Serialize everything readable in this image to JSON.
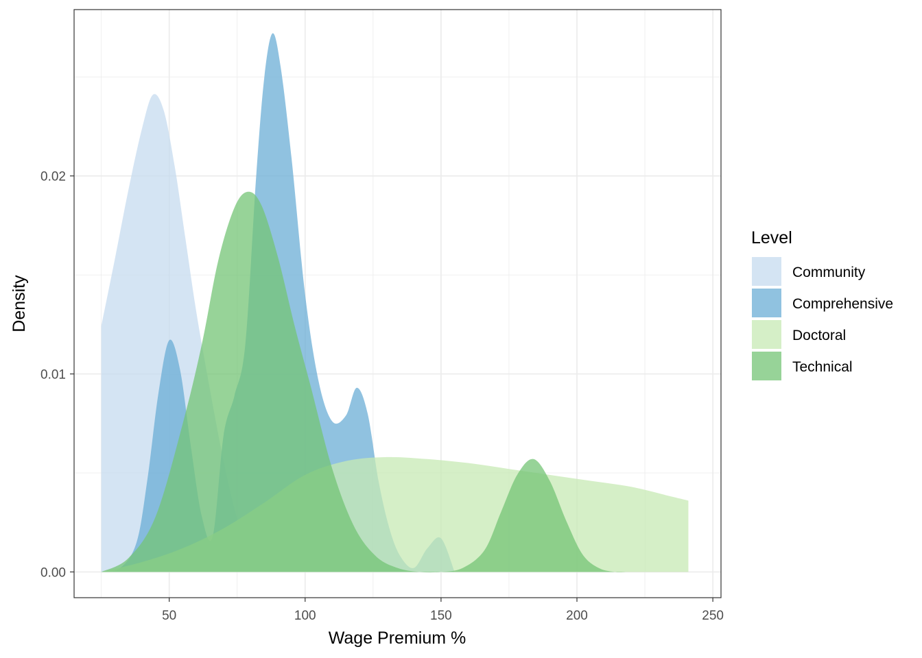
{
  "chart_data": {
    "type": "area",
    "subtype": "density",
    "title": "",
    "xlabel": "Wage Premium %",
    "ylabel": "Density",
    "xlim": [
      15,
      253
    ],
    "ylim": [
      -0.0013,
      0.0284
    ],
    "x_ticks": [
      50,
      100,
      150,
      200,
      250
    ],
    "x_tick_labels": [
      "50",
      "100",
      "150",
      "200",
      "250"
    ],
    "y_ticks": [
      0.0,
      0.01,
      0.02
    ],
    "y_tick_labels": [
      "0.00",
      "0.01",
      "0.02"
    ],
    "grid": true,
    "legend": {
      "title": "Level",
      "position": "right"
    },
    "series": [
      {
        "name": "Community",
        "color": "#c6dbef",
        "x": [
          25,
          30,
          35,
          40,
          44,
          48,
          52,
          56,
          60,
          65,
          70,
          75,
          80,
          85,
          90
        ],
        "y": [
          0.0124,
          0.0158,
          0.0193,
          0.0224,
          0.0241,
          0.0233,
          0.0205,
          0.0168,
          0.0131,
          0.0092,
          0.0056,
          0.0027,
          0.001,
          0.0003,
          0.0
        ]
      },
      {
        "name": "Comprehensive",
        "color": "#6baed6",
        "x": [
          25,
          32,
          38,
          42,
          46,
          50,
          54,
          58,
          62,
          66,
          70,
          74,
          78,
          82,
          85,
          88,
          91,
          95,
          100,
          105,
          110,
          115,
          119,
          123,
          127,
          131,
          135,
          140,
          145,
          150,
          155
        ],
        "y": [
          0.0,
          0.0002,
          0.0015,
          0.0047,
          0.009,
          0.0117,
          0.0102,
          0.0063,
          0.0028,
          0.0018,
          0.0069,
          0.0089,
          0.0115,
          0.02,
          0.025,
          0.0272,
          0.0255,
          0.0209,
          0.014,
          0.0096,
          0.0076,
          0.0079,
          0.0093,
          0.008,
          0.0046,
          0.0022,
          0.0008,
          0.0002,
          0.0012,
          0.0017,
          0.0
        ]
      },
      {
        "name": "Doctoral",
        "color": "#c7e9b4",
        "x": [
          25,
          40,
          55,
          70,
          85,
          100,
          115,
          130,
          145,
          160,
          175,
          190,
          205,
          220,
          235,
          241
        ],
        "y": [
          0.0,
          0.0005,
          0.0012,
          0.0022,
          0.0035,
          0.0049,
          0.0056,
          0.0058,
          0.0057,
          0.0055,
          0.0052,
          0.0049,
          0.0046,
          0.0043,
          0.0038,
          0.0036
        ]
      },
      {
        "name": "Technical",
        "color": "#74c476",
        "x": [
          25,
          35,
          45,
          55,
          62,
          68,
          74,
          79,
          84,
          90,
          96,
          102,
          110,
          118,
          126,
          134,
          142,
          150,
          158,
          166,
          172,
          178,
          184,
          190,
          196,
          202,
          208,
          214,
          218
        ],
        "y": [
          0.0,
          0.0007,
          0.0028,
          0.0075,
          0.0115,
          0.0157,
          0.0184,
          0.0192,
          0.0185,
          0.0159,
          0.0125,
          0.0094,
          0.0052,
          0.0023,
          0.0008,
          0.0002,
          0.0,
          0.0,
          0.0002,
          0.0011,
          0.003,
          0.0049,
          0.0057,
          0.0046,
          0.0026,
          0.0009,
          0.0002,
          0.0,
          0.0
        ]
      }
    ]
  }
}
